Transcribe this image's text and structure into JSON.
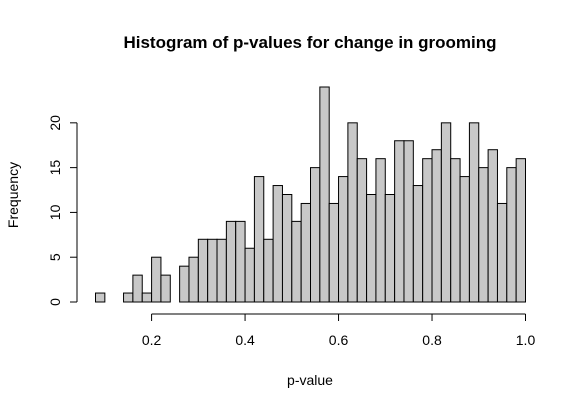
{
  "chart_data": {
    "type": "bar",
    "title": "Histogram of p-values for change in grooming",
    "xlabel": "p-value",
    "ylabel": "Frequency",
    "bin_width": 0.02,
    "bin_starts": [
      0.08,
      0.1,
      0.12,
      0.14,
      0.16,
      0.18,
      0.2,
      0.22,
      0.24,
      0.26,
      0.28,
      0.3,
      0.32,
      0.34,
      0.36,
      0.38,
      0.4,
      0.42,
      0.44,
      0.46,
      0.48,
      0.5,
      0.52,
      0.54,
      0.56,
      0.58,
      0.6,
      0.62,
      0.64,
      0.66,
      0.68,
      0.7,
      0.72,
      0.74,
      0.76,
      0.78,
      0.8,
      0.82,
      0.84,
      0.86,
      0.88,
      0.9,
      0.92,
      0.94,
      0.96,
      0.98
    ],
    "values": [
      1,
      0,
      0,
      1,
      3,
      1,
      5,
      3,
      0,
      4,
      5,
      7,
      7,
      7,
      9,
      9,
      6,
      14,
      7,
      13,
      12,
      9,
      11,
      15,
      24,
      11,
      14,
      20,
      16,
      12,
      16,
      12,
      18,
      18,
      13,
      16,
      17,
      20,
      16,
      14,
      20,
      15,
      17,
      11,
      15,
      16
    ],
    "xlim": [
      0.08,
      1.0
    ],
    "ylim": [
      0,
      24
    ],
    "x_ticks": [
      "0.2",
      "0.4",
      "0.6",
      "0.8",
      "1.0"
    ],
    "y_ticks": [
      "0",
      "5",
      "10",
      "15",
      "20"
    ]
  }
}
